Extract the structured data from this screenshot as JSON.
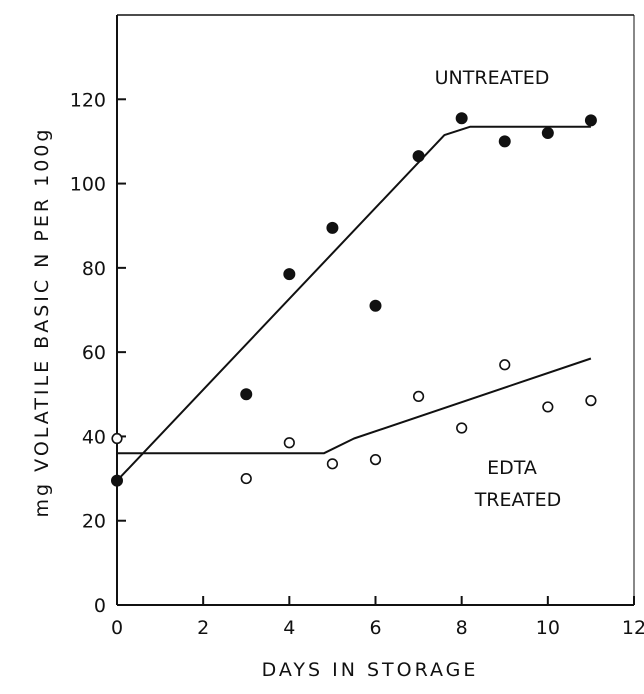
{
  "chart_data": {
    "type": "scatter",
    "title": "",
    "xlabel": "DAYS IN STORAGE",
    "ylabel": "mg VOLATILE BASIC N PER 100g",
    "xlim": [
      0,
      12
    ],
    "ylim": [
      0,
      140
    ],
    "xticks": [
      0,
      2,
      4,
      6,
      8,
      10,
      12
    ],
    "yticks": [
      0,
      20,
      40,
      60,
      80,
      100,
      120
    ],
    "grid": false,
    "series": [
      {
        "name": "UNTREATED",
        "marker": "filled-circle",
        "points": [
          [
            0,
            29.5
          ],
          [
            3,
            50
          ],
          [
            4,
            78.5
          ],
          [
            5,
            89.5
          ],
          [
            6,
            71
          ],
          [
            7,
            106.5
          ],
          [
            8,
            115.5
          ],
          [
            9,
            110
          ],
          [
            10,
            112
          ],
          [
            11,
            115
          ]
        ],
        "fit_line": [
          [
            0,
            29.5
          ],
          [
            7.6,
            111.5
          ],
          [
            8.2,
            113.5
          ],
          [
            11,
            113.5
          ]
        ]
      },
      {
        "name": "EDTA TREATED",
        "label_lines": [
          "EDTA",
          "TREATED"
        ],
        "marker": "open-circle",
        "points": [
          [
            0,
            39.5
          ],
          [
            3,
            30
          ],
          [
            4,
            38.5
          ],
          [
            5,
            33.5
          ],
          [
            6,
            34.5
          ],
          [
            7,
            49.5
          ],
          [
            8,
            42
          ],
          [
            9,
            57
          ],
          [
            10,
            47
          ],
          [
            11,
            48.5
          ]
        ],
        "fit_line": [
          [
            0,
            36
          ],
          [
            4.8,
            36
          ],
          [
            5.5,
            39.5
          ],
          [
            11,
            58.5
          ]
        ]
      }
    ]
  }
}
